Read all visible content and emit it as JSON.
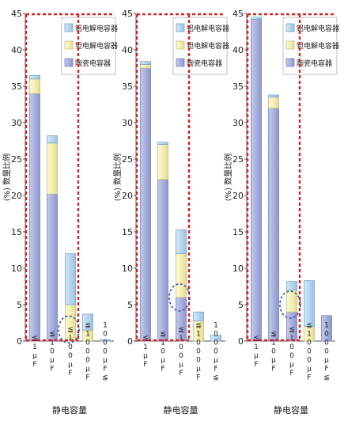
{
  "colors": {
    "ceramic": "#a9b0dc",
    "ceramic_edge": "#7b84c4",
    "tantalum": "#f3f0b4",
    "tantalum_edge": "#c8c079",
    "aluminum": "#b9d6ee",
    "aluminum_edge": "#7aa6cc",
    "frame": "#d62020",
    "circle": "#3a55a8",
    "axis_text": "#222222"
  },
  "chart_data": [
    {
      "type": "bar",
      "stacked": true,
      "title": "",
      "xlabel": "静电容量",
      "ylabel": "(%) 数量比例",
      "ylim": [
        0,
        45
      ],
      "yticks": [
        0,
        5,
        10,
        15,
        20,
        25,
        30,
        35,
        40,
        45
      ],
      "categories": [
        "≦1μF",
        "≦10μF",
        "≦100μF",
        "≦1000μF",
        "1000μF≦"
      ],
      "legend": [
        "铝电解电容器",
        "钽电解电容器",
        "陶瓷电容器"
      ],
      "legend_position": "top-right",
      "series": [
        {
          "name": "陶瓷电容器",
          "color": "ceramic",
          "values": [
            34,
            20.2,
            0,
            0,
            0
          ]
        },
        {
          "name": "钽电解电容器",
          "color": "tantalum",
          "values": [
            2,
            7,
            5,
            1.5,
            0
          ]
        },
        {
          "name": "铝电解电容器",
          "color": "aluminum",
          "values": [
            0.5,
            1,
            7,
            2.2,
            0.2
          ]
        }
      ],
      "dashed_circle_category": "≦100μF"
    },
    {
      "type": "bar",
      "stacked": true,
      "title": "",
      "xlabel": "静电容量",
      "ylabel": "(%) 数量比例",
      "ylim": [
        0,
        45
      ],
      "yticks": [
        0,
        5,
        10,
        15,
        20,
        25,
        30,
        35,
        40,
        45
      ],
      "categories": [
        "≦1μF",
        "≦10μF",
        "≦100μF",
        "≦1000μF",
        "1000μF≦"
      ],
      "legend": [
        "铝电解电容器",
        "钽电解电容器",
        "陶瓷电容器"
      ],
      "legend_position": "top-right",
      "series": [
        {
          "name": "陶瓷电容器",
          "color": "ceramic",
          "values": [
            37.5,
            22.2,
            6,
            0,
            0
          ]
        },
        {
          "name": "钽电解电容器",
          "color": "tantalum",
          "values": [
            0.5,
            4.8,
            6,
            2.8,
            0
          ]
        },
        {
          "name": "铝电解电容器",
          "color": "aluminum",
          "values": [
            0.4,
            0.3,
            3.3,
            1.2,
            0.8
          ]
        }
      ],
      "dashed_circle_category": "≦100μF"
    },
    {
      "type": "bar",
      "stacked": true,
      "title": "",
      "xlabel": "静电容量",
      "ylabel": "(%) 数量比例",
      "ylim": [
        0,
        45
      ],
      "yticks": [
        0,
        5,
        10,
        15,
        20,
        25,
        30,
        35,
        40,
        45
      ],
      "categories": [
        "≦1μF",
        "≦10μF",
        "≦100μF",
        "≦1000μF",
        "1000μF≦"
      ],
      "legend": [
        "铝电解电容器",
        "钽电解电容器",
        "陶瓷电容器"
      ],
      "legend_position": "top-right",
      "series": [
        {
          "name": "陶瓷电容器",
          "color": "ceramic",
          "values": [
            44.2,
            32,
            4,
            0,
            3.5
          ]
        },
        {
          "name": "钽电解电容器",
          "color": "tantalum",
          "values": [
            0,
            1.5,
            3,
            2,
            0
          ]
        },
        {
          "name": "铝电解电容器",
          "color": "aluminum",
          "values": [
            0.3,
            0.3,
            1.2,
            6.3,
            0
          ]
        }
      ],
      "dashed_circle_category": "≦100μF"
    }
  ]
}
